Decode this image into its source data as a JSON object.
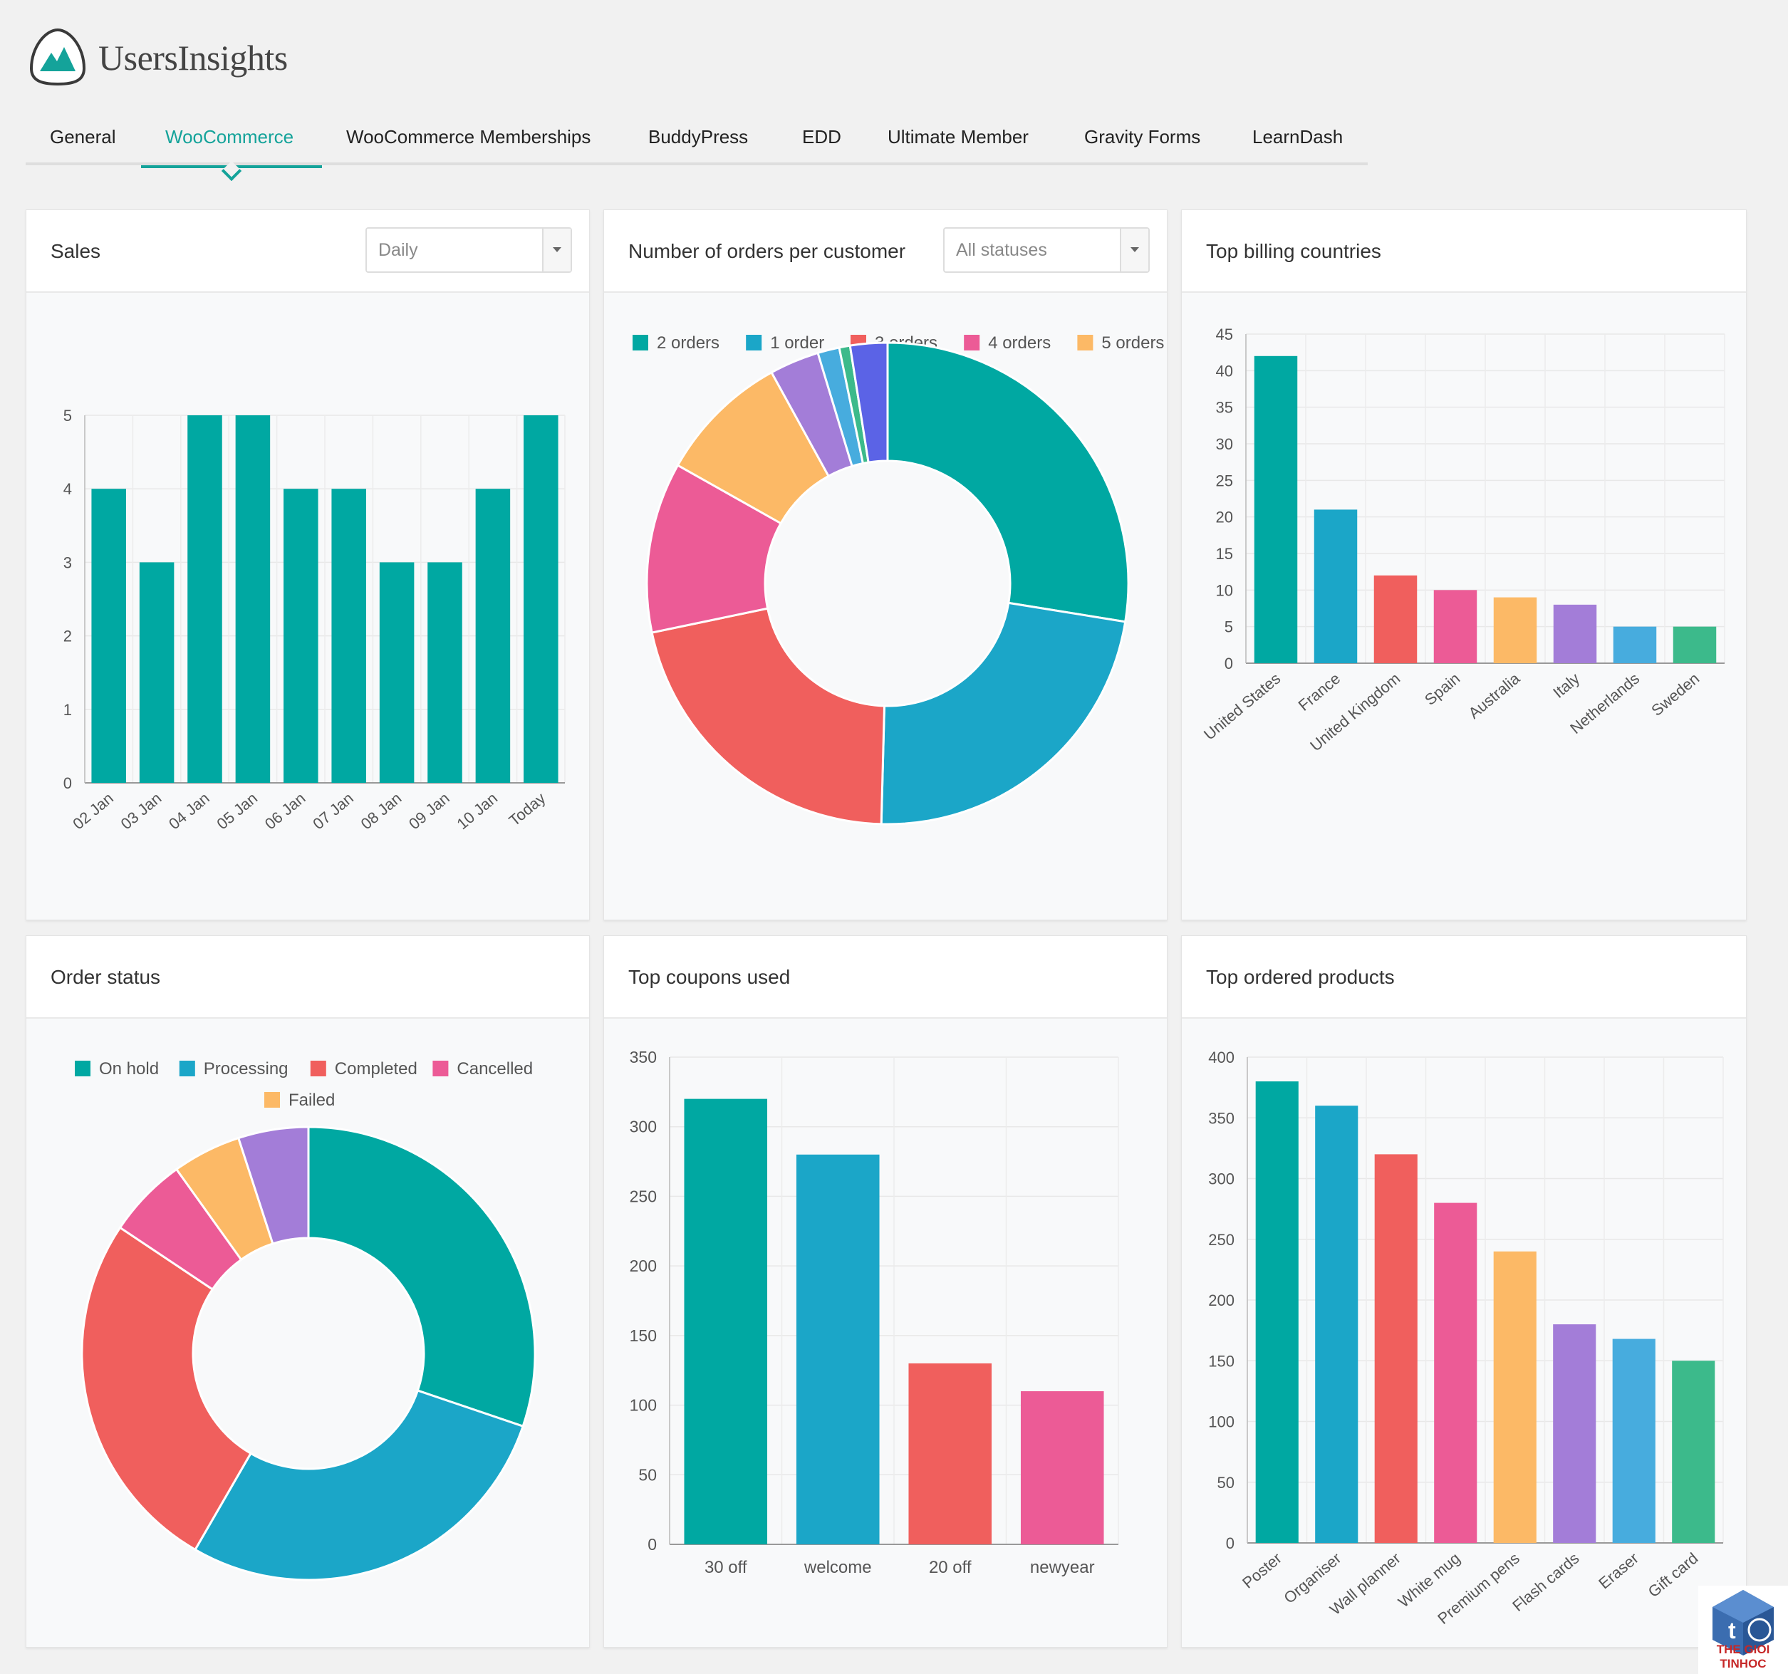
{
  "app": {
    "logo_text": "UsersInsights"
  },
  "tabs": [
    {
      "label": "General",
      "active": false
    },
    {
      "label": "WooCommerce",
      "active": true
    },
    {
      "label": "WooCommerce Memberships",
      "active": false
    },
    {
      "label": "BuddyPress",
      "active": false
    },
    {
      "label": "EDD",
      "active": false
    },
    {
      "label": "Ultimate Member",
      "active": false
    },
    {
      "label": "Gravity Forms",
      "active": false
    },
    {
      "label": "LearnDash",
      "active": false
    }
  ],
  "palette": [
    "#00a8a2",
    "#1ba6c8",
    "#f05f5d",
    "#ec5b96",
    "#fcb966",
    "#a37dd8",
    "#47acde",
    "#3cba8b",
    "#5b63e6"
  ],
  "cards": {
    "sales": {
      "title": "Sales",
      "select_value": "Daily"
    },
    "orders_per_customer": {
      "title": "Number of orders per customer",
      "select_value": "All statuses"
    },
    "billing": {
      "title": "Top billing countries"
    },
    "order_status": {
      "title": "Order status"
    },
    "coupons": {
      "title": "Top coupons used"
    },
    "products": {
      "title": "Top ordered products"
    }
  },
  "chart_data": [
    {
      "id": "sales",
      "type": "bar",
      "categories": [
        "02 Jan",
        "03 Jan",
        "04 Jan",
        "05 Jan",
        "06 Jan",
        "07 Jan",
        "08 Jan",
        "09 Jan",
        "10 Jan",
        "Today"
      ],
      "values": [
        4,
        3,
        5,
        5,
        4,
        4,
        3,
        3,
        4,
        5
      ],
      "ylim": [
        0,
        5
      ],
      "yticks": [
        0,
        1,
        2,
        3,
        4,
        5
      ],
      "grid": true,
      "color": "#00a8a2"
    },
    {
      "id": "orders_per_customer",
      "type": "pie",
      "donut": true,
      "legend": [
        "2 orders",
        "1 order",
        "3 orders",
        "4 orders",
        "5 orders"
      ],
      "legend_placement": "top",
      "values": [
        26.5,
        22,
        20.5,
        11,
        8.5,
        3.2,
        1.4,
        0.7,
        2.4
      ],
      "colors": [
        "#00a8a2",
        "#1ba6c8",
        "#f05f5d",
        "#ec5b96",
        "#fcb966",
        "#a37dd8",
        "#47acde",
        "#3cba8b",
        "#5b63e6"
      ]
    },
    {
      "id": "billing",
      "type": "bar",
      "categories": [
        "United States",
        "France",
        "United Kingdom",
        "Spain",
        "Australia",
        "Italy",
        "Netherlands",
        "Sweden"
      ],
      "values": [
        42,
        21,
        12,
        10,
        9,
        8,
        5,
        5
      ],
      "ylim": [
        0,
        45
      ],
      "yticks": [
        0,
        5,
        10,
        15,
        20,
        25,
        30,
        35,
        40,
        45
      ],
      "grid": true
    },
    {
      "id": "order_status",
      "type": "pie",
      "donut": true,
      "legend": [
        "On hold",
        "Processing",
        "Completed",
        "Cancelled",
        "Failed"
      ],
      "legend_placement": "top",
      "values": [
        29,
        27,
        25,
        5.5,
        4.7,
        4.8
      ],
      "colors": [
        "#00a8a2",
        "#1ba6c8",
        "#f05f5d",
        "#ec5b96",
        "#fcb966",
        "#a37dd8"
      ]
    },
    {
      "id": "coupons",
      "type": "bar",
      "categories": [
        "30 off",
        "welcome",
        "20 off",
        "newyear"
      ],
      "values": [
        320,
        280,
        130,
        110
      ],
      "ylim": [
        0,
        350
      ],
      "yticks": [
        0,
        50,
        100,
        150,
        200,
        250,
        300,
        350
      ],
      "grid": true
    },
    {
      "id": "products",
      "type": "bar",
      "categories": [
        "Poster",
        "Organiser",
        "Wall planner",
        "White mug",
        "Premium pens",
        "Flash cards",
        "Eraser",
        "Gift card"
      ],
      "values": [
        380,
        360,
        320,
        280,
        240,
        180,
        168,
        150
      ],
      "ylim": [
        0,
        400
      ],
      "yticks": [
        0,
        50,
        100,
        150,
        200,
        250,
        300,
        350,
        400
      ],
      "grid": true
    }
  ],
  "watermark": {
    "text": "THE GIOI TINHOC"
  }
}
